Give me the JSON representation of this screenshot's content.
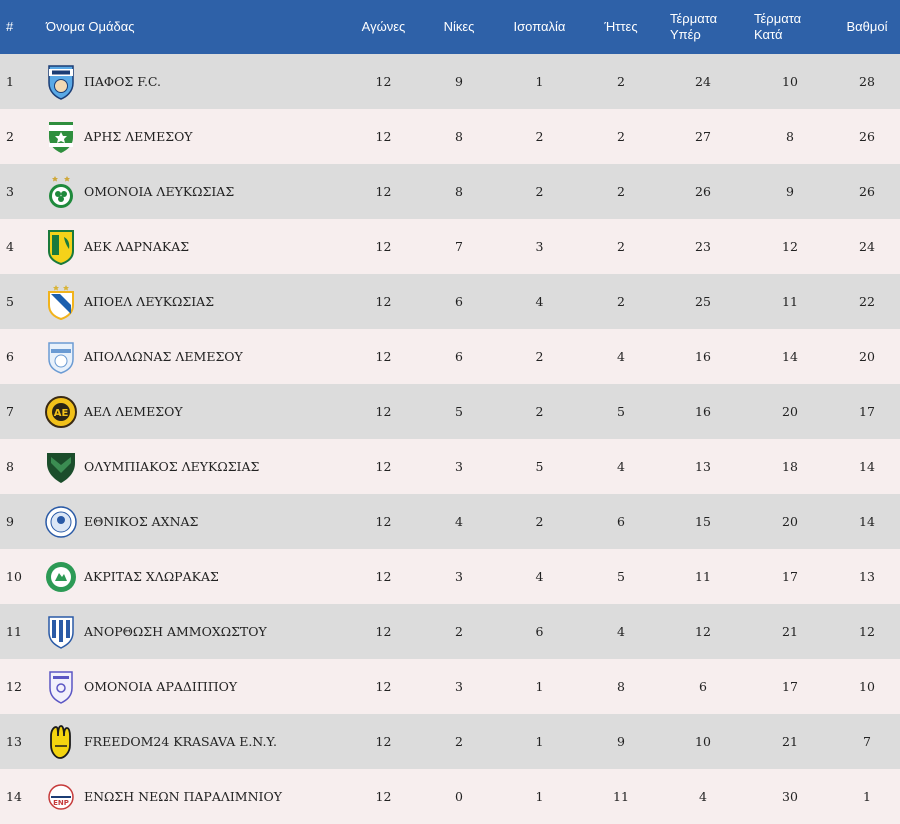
{
  "header": {
    "pos": "#",
    "team": "Όνομα Ομάδας",
    "played": "Αγώνες",
    "wins": "Νίκες",
    "draws": "Ισοπαλία",
    "losses": "Ήττες",
    "goals_for_line1": "Τέρματα",
    "goals_for_line2": "Υπέρ",
    "goals_against_line1": "Τέρματα",
    "goals_against_line2": "Κατά",
    "points": "Βαθμοί"
  },
  "colors": {
    "header_bg": "#2e61a8",
    "row_odd": "#dcdcdc",
    "row_even": "#f7eeee"
  },
  "rows": [
    {
      "pos": "1",
      "team": "ΠΑΦΟΣ F.C.",
      "logo": "pafos-crest",
      "played": "12",
      "wins": "9",
      "draws": "1",
      "losses": "2",
      "gf": "24",
      "ga": "10",
      "pts": "28"
    },
    {
      "pos": "2",
      "team": "ΑΡΗΣ ΛΕΜΕΣΟΥ",
      "logo": "aris-crest",
      "played": "12",
      "wins": "8",
      "draws": "2",
      "losses": "2",
      "gf": "27",
      "ga": "8",
      "pts": "26"
    },
    {
      "pos": "3",
      "team": "ΟΜΟΝΟΙΑ ΛΕΥΚΩΣΙΑΣ",
      "logo": "omonoia-crest",
      "played": "12",
      "wins": "8",
      "draws": "2",
      "losses": "2",
      "gf": "26",
      "ga": "9",
      "pts": "26"
    },
    {
      "pos": "4",
      "team": "ΑΕΚ ΛΑΡΝΑΚΑΣ",
      "logo": "aek-crest",
      "played": "12",
      "wins": "7",
      "draws": "3",
      "losses": "2",
      "gf": "23",
      "ga": "12",
      "pts": "24"
    },
    {
      "pos": "5",
      "team": "ΑΠΟΕΛ ΛΕΥΚΩΣΙΑΣ",
      "logo": "apoel-crest",
      "played": "12",
      "wins": "6",
      "draws": "4",
      "losses": "2",
      "gf": "25",
      "ga": "11",
      "pts": "22"
    },
    {
      "pos": "6",
      "team": "ΑΠΟΛΛΩΝΑΣ ΛΕΜΕΣΟΥ",
      "logo": "apollon-crest",
      "played": "12",
      "wins": "6",
      "draws": "2",
      "losses": "4",
      "gf": "16",
      "ga": "14",
      "pts": "20"
    },
    {
      "pos": "7",
      "team": "ΑΕΛ ΛΕΜΕΣΟΥ",
      "logo": "ael-crest",
      "played": "12",
      "wins": "5",
      "draws": "2",
      "losses": "5",
      "gf": "16",
      "ga": "20",
      "pts": "17"
    },
    {
      "pos": "8",
      "team": "ΟΛΥΜΠΙΑΚΟΣ ΛΕΥΚΩΣΙΑΣ",
      "logo": "olympiakos-crest",
      "played": "12",
      "wins": "3",
      "draws": "5",
      "losses": "4",
      "gf": "13",
      "ga": "18",
      "pts": "14"
    },
    {
      "pos": "9",
      "team": "ΕΘΝΙΚΟΣ ΑΧΝΑΣ",
      "logo": "ethnikos-crest",
      "played": "12",
      "wins": "4",
      "draws": "2",
      "losses": "6",
      "gf": "15",
      "ga": "20",
      "pts": "14"
    },
    {
      "pos": "10",
      "team": "ΑΚΡΙΤΑΣ ΧΛΩΡΑΚΑΣ",
      "logo": "akritas-crest",
      "played": "12",
      "wins": "3",
      "draws": "4",
      "losses": "5",
      "gf": "11",
      "ga": "17",
      "pts": "13"
    },
    {
      "pos": "11",
      "team": "ΑΝΟΡΘΩΣΗ ΑΜΜΟΧΩΣΤΟΥ",
      "logo": "anorthosis-crest",
      "played": "12",
      "wins": "2",
      "draws": "6",
      "losses": "4",
      "gf": "12",
      "ga": "21",
      "pts": "12"
    },
    {
      "pos": "12",
      "team": "ΟΜΟΝΟΙΑ ΑΡΑΔΙΠΠΟΥ",
      "logo": "omonoia-aradippou-crest",
      "played": "12",
      "wins": "3",
      "draws": "1",
      "losses": "8",
      "gf": "6",
      "ga": "17",
      "pts": "10"
    },
    {
      "pos": "13",
      "team": "FREEDOM24 KRASAVA E.N.Y.",
      "logo": "krasava-crest",
      "played": "12",
      "wins": "2",
      "draws": "1",
      "losses": "9",
      "gf": "10",
      "ga": "21",
      "pts": "7"
    },
    {
      "pos": "14",
      "team": "ΕΝΩΣΗ ΝΕΩΝ ΠΑΡΑΛΙΜΝΙΟΥ",
      "logo": "enp-crest",
      "played": "12",
      "wins": "0",
      "draws": "1",
      "losses": "11",
      "gf": "4",
      "ga": "30",
      "pts": "1"
    }
  ]
}
